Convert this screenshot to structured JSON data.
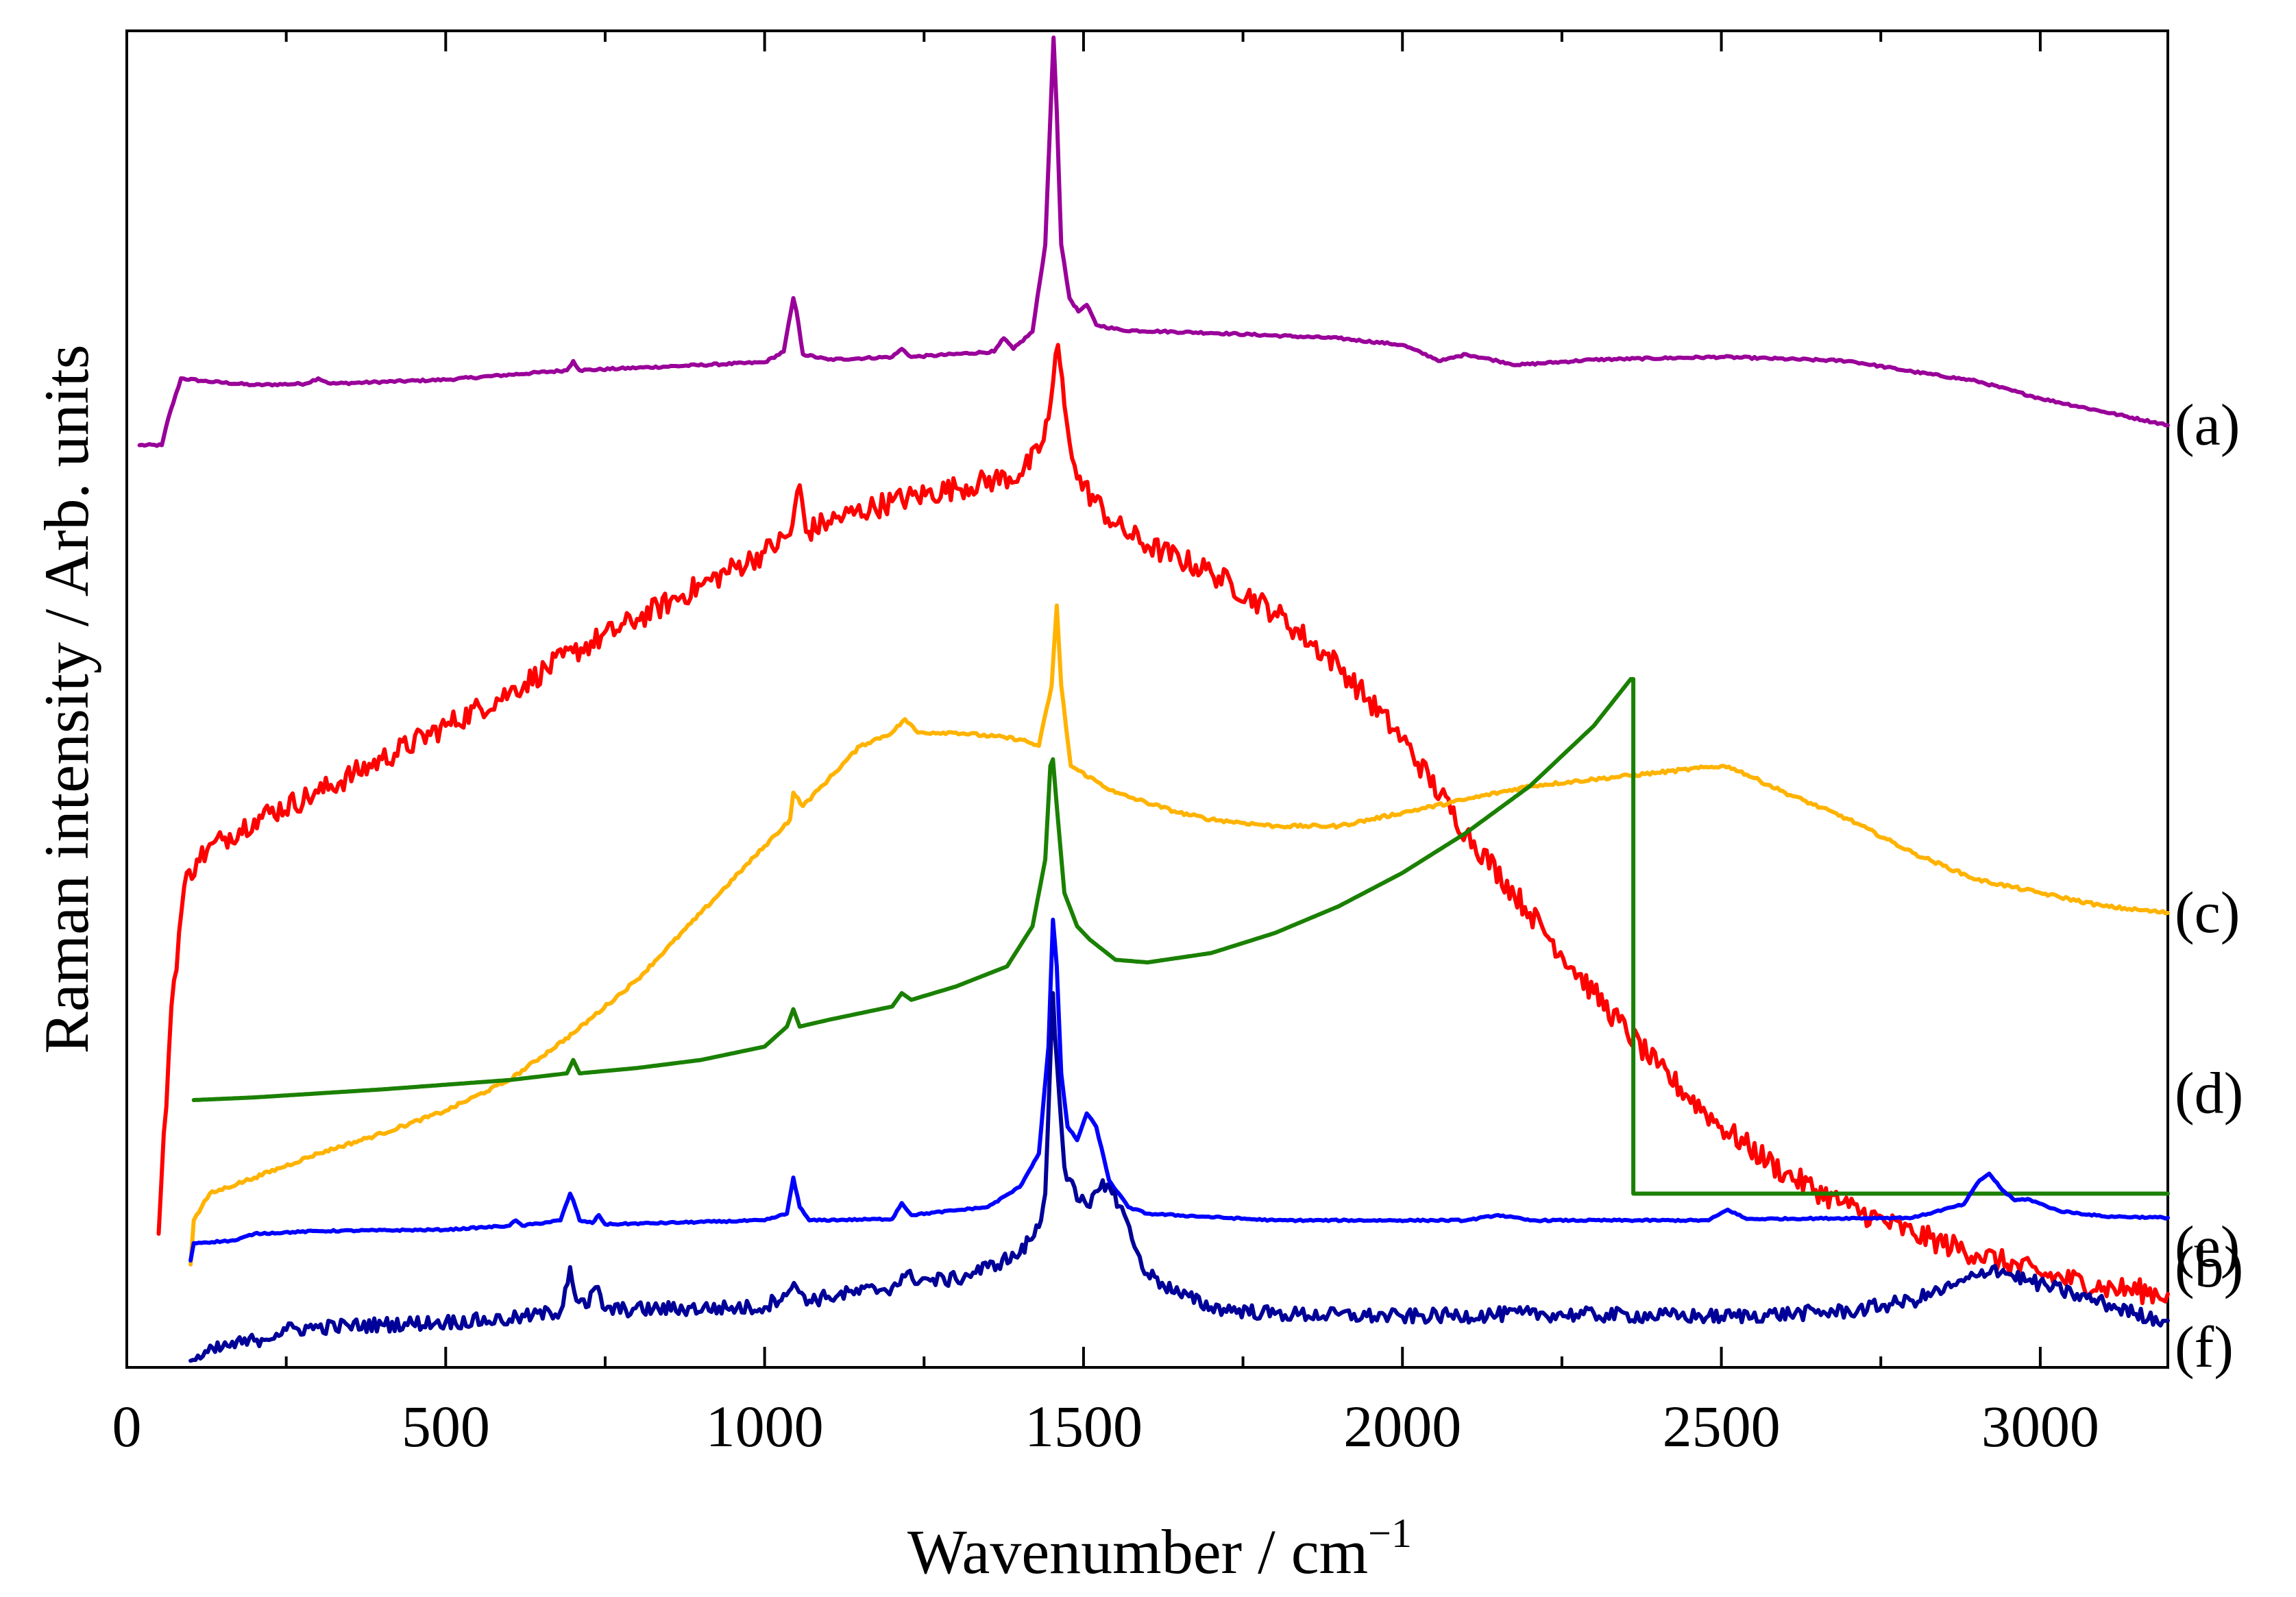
{
  "chart_data": {
    "type": "line",
    "xlabel": "Wavenumber / cm",
    "xlabel_superscript": "−1",
    "ylabel": "Raman intensity / Arb. units",
    "xlim": [
      0,
      3200
    ],
    "ylim": [
      0,
      100
    ],
    "xticks": [
      0,
      500,
      1000,
      1500,
      2000,
      2500,
      3000
    ],
    "xtick_labels": [
      "0",
      "500",
      "1000",
      "1500",
      "2000",
      "2500",
      "3000"
    ],
    "grid": false,
    "y_tick_labels_shown": false,
    "series": [
      {
        "name": "(a)",
        "label": "(a)",
        "color": "#990099",
        "label_y": 70.5,
        "points": [
          [
            20,
            69
          ],
          [
            55,
            69
          ],
          [
            65,
            71
          ],
          [
            85,
            74
          ],
          [
            120,
            73.8
          ],
          [
            200,
            73.5
          ],
          [
            280,
            73.6
          ],
          [
            300,
            74
          ],
          [
            320,
            73.6
          ],
          [
            500,
            73.9
          ],
          [
            690,
            74.6
          ],
          [
            700,
            75.3
          ],
          [
            710,
            74.6
          ],
          [
            1000,
            75.2
          ],
          [
            1030,
            76
          ],
          [
            1045,
            80
          ],
          [
            1050,
            79
          ],
          [
            1060,
            75.8
          ],
          [
            1100,
            75.4
          ],
          [
            1200,
            75.6
          ],
          [
            1215,
            76.2
          ],
          [
            1230,
            75.6
          ],
          [
            1360,
            76
          ],
          [
            1375,
            77
          ],
          [
            1390,
            76.2
          ],
          [
            1420,
            77.5
          ],
          [
            1440,
            84
          ],
          [
            1450,
            96
          ],
          [
            1453,
            99.5
          ],
          [
            1458,
            94
          ],
          [
            1465,
            84
          ],
          [
            1478,
            80
          ],
          [
            1492,
            79
          ],
          [
            1505,
            79.5
          ],
          [
            1520,
            78
          ],
          [
            1560,
            77.6
          ],
          [
            1700,
            77.4
          ],
          [
            1900,
            77
          ],
          [
            2000,
            76.5
          ],
          [
            2060,
            75.3
          ],
          [
            2100,
            75.8
          ],
          [
            2150,
            75.3
          ],
          [
            2180,
            75
          ],
          [
            2300,
            75.4
          ],
          [
            2500,
            75.6
          ],
          [
            2700,
            75.3
          ],
          [
            2800,
            74.5
          ],
          [
            2900,
            73.8
          ],
          [
            3000,
            72.5
          ],
          [
            3100,
            71.5
          ],
          [
            3200,
            70.5
          ]
        ]
      },
      {
        "name": "(b)",
        "label": "(b)",
        "color": "#ff0000",
        "label_y": 7.5,
        "points": [
          [
            50,
            10
          ],
          [
            70,
            27
          ],
          [
            90,
            36
          ],
          [
            110,
            38
          ],
          [
            150,
            39.5
          ],
          [
            200,
            41
          ],
          [
            300,
            43
          ],
          [
            400,
            45.5
          ],
          [
            500,
            48
          ],
          [
            600,
            50.5
          ],
          [
            700,
            53.5
          ],
          [
            800,
            56
          ],
          [
            900,
            58.5
          ],
          [
            1000,
            61
          ],
          [
            1040,
            62.3
          ],
          [
            1055,
            66
          ],
          [
            1065,
            62.5
          ],
          [
            1100,
            63.3
          ],
          [
            1200,
            64.8
          ],
          [
            1300,
            65.8
          ],
          [
            1400,
            66.8
          ],
          [
            1430,
            68.5
          ],
          [
            1445,
            71
          ],
          [
            1460,
            76.5
          ],
          [
            1470,
            72
          ],
          [
            1490,
            66.5
          ],
          [
            1550,
            63
          ],
          [
            1600,
            61.5
          ],
          [
            1700,
            59.5
          ],
          [
            1800,
            56.5
          ],
          [
            1900,
            52.5
          ],
          [
            2000,
            47
          ],
          [
            2100,
            40
          ],
          [
            2200,
            34
          ],
          [
            2300,
            28
          ],
          [
            2400,
            22.5
          ],
          [
            2500,
            18
          ],
          [
            2600,
            14.5
          ],
          [
            2700,
            12
          ],
          [
            2800,
            10
          ],
          [
            2900,
            8.5
          ],
          [
            3000,
            7
          ],
          [
            3100,
            6
          ],
          [
            3200,
            5.5
          ]
        ]
      },
      {
        "name": "(c)",
        "label": "(c)",
        "color": "#ffb300",
        "label_y": 34,
        "points": [
          [
            100,
            7.7
          ],
          [
            105,
            11
          ],
          [
            130,
            13
          ],
          [
            200,
            14.2
          ],
          [
            300,
            16
          ],
          [
            400,
            17.5
          ],
          [
            500,
            19.2
          ],
          [
            600,
            21.5
          ],
          [
            700,
            25
          ],
          [
            800,
            29
          ],
          [
            900,
            34
          ],
          [
            1000,
            39
          ],
          [
            1040,
            41
          ],
          [
            1045,
            43
          ],
          [
            1060,
            42
          ],
          [
            1100,
            44
          ],
          [
            1150,
            46.5
          ],
          [
            1200,
            47.5
          ],
          [
            1220,
            48.5
          ],
          [
            1240,
            47.5
          ],
          [
            1300,
            47.5
          ],
          [
            1400,
            47
          ],
          [
            1430,
            46.5
          ],
          [
            1450,
            51
          ],
          [
            1458,
            57
          ],
          [
            1465,
            51
          ],
          [
            1480,
            45
          ],
          [
            1550,
            43
          ],
          [
            1650,
            41.5
          ],
          [
            1700,
            41
          ],
          [
            1800,
            40.5
          ],
          [
            1900,
            40.5
          ],
          [
            2000,
            41.5
          ],
          [
            2100,
            42.5
          ],
          [
            2200,
            43.5
          ],
          [
            2300,
            44
          ],
          [
            2400,
            44.5
          ],
          [
            2500,
            45
          ],
          [
            2520,
            44.8
          ],
          [
            2600,
            43
          ],
          [
            2700,
            41
          ],
          [
            2800,
            38.5
          ],
          [
            2900,
            36.5
          ],
          [
            3000,
            35.5
          ],
          [
            3100,
            34.5
          ],
          [
            3200,
            34
          ]
        ]
      },
      {
        "name": "(d)",
        "label": "(d)",
        "color": "#1a8000",
        "label_y": 20.5,
        "points": [
          [
            105,
            20
          ],
          [
            200,
            20.2
          ],
          [
            400,
            20.8
          ],
          [
            600,
            21.5
          ],
          [
            690,
            22
          ],
          [
            700,
            23
          ],
          [
            710,
            22
          ],
          [
            800,
            22.4
          ],
          [
            900,
            23
          ],
          [
            1000,
            24
          ],
          [
            1035,
            25.5
          ],
          [
            1045,
            26.8
          ],
          [
            1055,
            25.5
          ],
          [
            1100,
            26
          ],
          [
            1200,
            27
          ],
          [
            1215,
            28
          ],
          [
            1230,
            27.5
          ],
          [
            1300,
            28.5
          ],
          [
            1380,
            30
          ],
          [
            1420,
            33
          ],
          [
            1440,
            38
          ],
          [
            1448,
            45
          ],
          [
            1452,
            45.5
          ],
          [
            1458,
            42
          ],
          [
            1470,
            35.5
          ],
          [
            1490,
            33
          ],
          [
            1510,
            32
          ],
          [
            1550,
            30.5
          ],
          [
            1600,
            30.3
          ],
          [
            1700,
            31
          ],
          [
            1800,
            32.5
          ],
          [
            1900,
            34.5
          ],
          [
            2000,
            37
          ],
          [
            2100,
            40
          ],
          [
            2200,
            43.5
          ],
          [
            2300,
            48
          ],
          [
            2358,
            51.5
          ],
          [
            2362,
            51.5
          ],
          [
            2362,
            13
          ],
          [
            3200,
            13
          ]
        ]
      },
      {
        "name": "(e)",
        "label": "(e)",
        "color": "#0000ff",
        "label_y": 9,
        "points": [
          [
            100,
            8
          ],
          [
            105,
            9.3
          ],
          [
            170,
            9.5
          ],
          [
            200,
            10
          ],
          [
            300,
            10.2
          ],
          [
            500,
            10.3
          ],
          [
            600,
            10.6
          ],
          [
            610,
            11
          ],
          [
            620,
            10.6
          ],
          [
            680,
            11
          ],
          [
            695,
            13
          ],
          [
            700,
            12.5
          ],
          [
            710,
            11
          ],
          [
            730,
            10.8
          ],
          [
            740,
            11.4
          ],
          [
            750,
            10.7
          ],
          [
            1000,
            11
          ],
          [
            1035,
            11.5
          ],
          [
            1045,
            14.2
          ],
          [
            1055,
            12
          ],
          [
            1070,
            11
          ],
          [
            1200,
            11.1
          ],
          [
            1215,
            12.3
          ],
          [
            1230,
            11.4
          ],
          [
            1350,
            12
          ],
          [
            1400,
            13.5
          ],
          [
            1430,
            16
          ],
          [
            1445,
            24
          ],
          [
            1452,
            33.5
          ],
          [
            1458,
            30
          ],
          [
            1465,
            22
          ],
          [
            1475,
            18
          ],
          [
            1490,
            17
          ],
          [
            1505,
            19
          ],
          [
            1520,
            18
          ],
          [
            1540,
            14
          ],
          [
            1570,
            12
          ],
          [
            1600,
            11.5
          ],
          [
            1800,
            11
          ],
          [
            2100,
            11
          ],
          [
            2150,
            11.4
          ],
          [
            2200,
            11
          ],
          [
            2480,
            11
          ],
          [
            2510,
            11.8
          ],
          [
            2540,
            11.1
          ],
          [
            2800,
            11.2
          ],
          [
            2880,
            12.2
          ],
          [
            2905,
            14
          ],
          [
            2920,
            14.5
          ],
          [
            2940,
            13.3
          ],
          [
            2960,
            12.5
          ],
          [
            2980,
            12.6
          ],
          [
            3030,
            11.7
          ],
          [
            3100,
            11.3
          ],
          [
            3200,
            11.2
          ]
        ]
      },
      {
        "name": "(f)",
        "label": "(f)",
        "color": "#000099",
        "label_y": 1.5,
        "points": [
          [
            100,
            0.5
          ],
          [
            150,
            1.5
          ],
          [
            200,
            2
          ],
          [
            250,
            2.8
          ],
          [
            300,
            3
          ],
          [
            400,
            3.2
          ],
          [
            500,
            3.4
          ],
          [
            600,
            3.6
          ],
          [
            680,
            4.2
          ],
          [
            695,
            7.5
          ],
          [
            705,
            5
          ],
          [
            720,
            4.5
          ],
          [
            735,
            6
          ],
          [
            750,
            4.3
          ],
          [
            1000,
            4.5
          ],
          [
            1030,
            5.5
          ],
          [
            1050,
            6
          ],
          [
            1070,
            5
          ],
          [
            1100,
            5.3
          ],
          [
            1200,
            6
          ],
          [
            1220,
            6.8
          ],
          [
            1260,
            6.5
          ],
          [
            1300,
            6.6
          ],
          [
            1350,
            7.5
          ],
          [
            1400,
            8.5
          ],
          [
            1430,
            10.5
          ],
          [
            1440,
            13
          ],
          [
            1448,
            23
          ],
          [
            1452,
            28
          ],
          [
            1458,
            23
          ],
          [
            1470,
            15
          ],
          [
            1490,
            12.5
          ],
          [
            1510,
            12
          ],
          [
            1530,
            14
          ],
          [
            1545,
            13
          ],
          [
            1560,
            12
          ],
          [
            1580,
            9
          ],
          [
            1600,
            7
          ],
          [
            1650,
            5.5
          ],
          [
            1700,
            4.5
          ],
          [
            1800,
            4
          ],
          [
            2000,
            3.8
          ],
          [
            2200,
            4
          ],
          [
            2500,
            3.8
          ],
          [
            2700,
            4.2
          ],
          [
            2800,
            5
          ],
          [
            2860,
            6
          ],
          [
            2900,
            6.8
          ],
          [
            2925,
            7.5
          ],
          [
            2950,
            7
          ],
          [
            2980,
            6.5
          ],
          [
            3050,
            5.5
          ],
          [
            3100,
            4.8
          ],
          [
            3150,
            4
          ],
          [
            3200,
            3.5
          ]
        ]
      }
    ]
  }
}
